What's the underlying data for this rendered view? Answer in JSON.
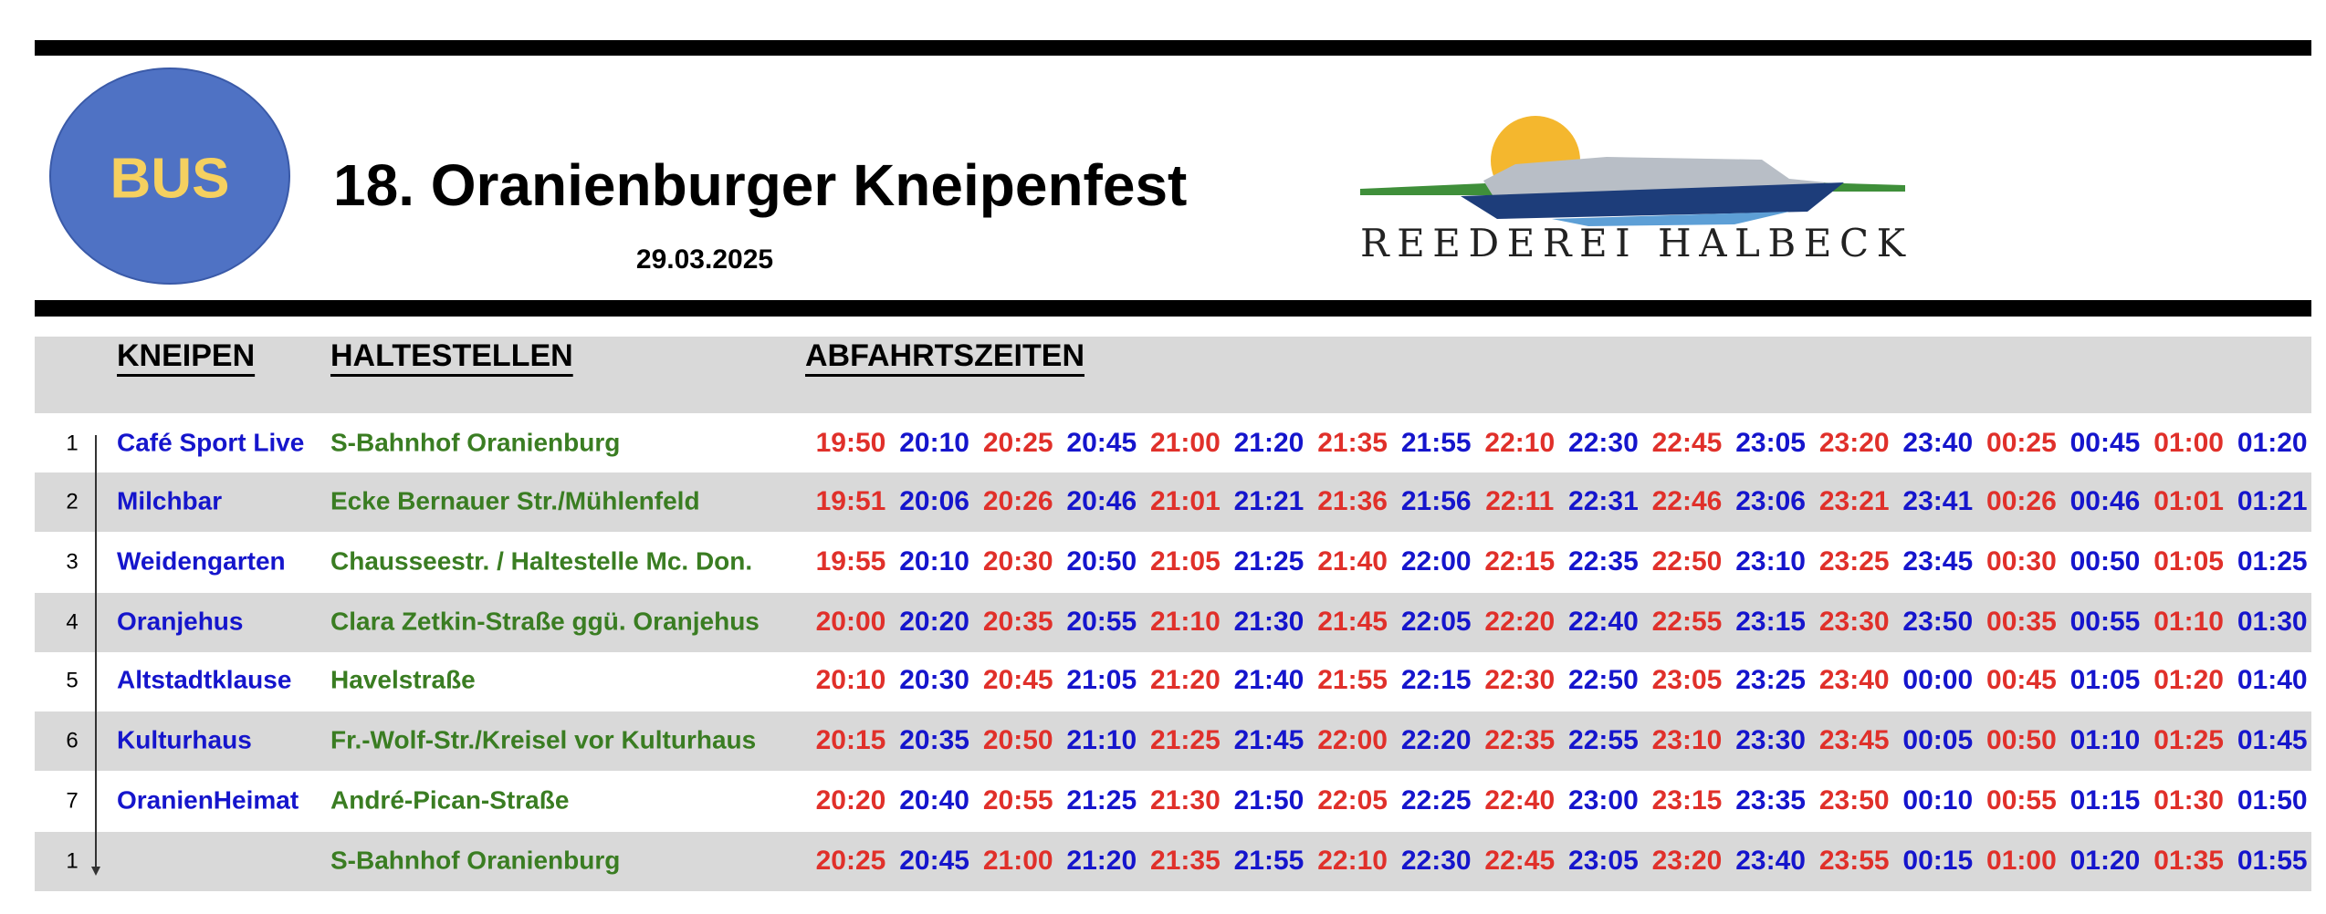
{
  "header": {
    "badge": "BUS",
    "title": "18. Oranienburger Kneipenfest",
    "date": "29.03.2025",
    "logo_text": "REEDEREI HALBECK"
  },
  "table": {
    "columns": [
      "KNEIPEN",
      "HALTESTELLEN",
      "ABFAHRTSZEITEN"
    ],
    "time_colors": [
      "#e0302a",
      "#1515cc"
    ],
    "rows": [
      {
        "num": "1",
        "kneipe": "Café Sport Live",
        "stop": "S-Bahnhof Oranienburg",
        "times": [
          "19:50",
          "20:10",
          "20:25",
          "20:45",
          "21:00",
          "21:20",
          "21:35",
          "21:55",
          "22:10",
          "22:30",
          "22:45",
          "23:05",
          "23:20",
          "23:40",
          "00:25",
          "00:45",
          "01:00",
          "01:20"
        ]
      },
      {
        "num": "2",
        "kneipe": "Milchbar",
        "stop": "Ecke Bernauer Str./Mühlenfeld",
        "times": [
          "19:51",
          "20:06",
          "20:26",
          "20:46",
          "21:01",
          "21:21",
          "21:36",
          "21:56",
          "22:11",
          "22:31",
          "22:46",
          "23:06",
          "23:21",
          "23:41",
          "00:26",
          "00:46",
          "01:01",
          "01:21"
        ]
      },
      {
        "num": "3",
        "kneipe": "Weidengarten",
        "stop": "Chausseestr. / Haltestelle Mc. Don.",
        "times": [
          "19:55",
          "20:10",
          "20:30",
          "20:50",
          "21:05",
          "21:25",
          "21:40",
          "22:00",
          "22:15",
          "22:35",
          "22:50",
          "23:10",
          "23:25",
          "23:45",
          "00:30",
          "00:50",
          "01:05",
          "01:25"
        ]
      },
      {
        "num": "4",
        "kneipe": "Oranjehus",
        "stop": "Clara Zetkin-Straße ggü. Oranjehus",
        "times": [
          "20:00",
          "20:20",
          "20:35",
          "20:55",
          "21:10",
          "21:30",
          "21:45",
          "22:05",
          "22:20",
          "22:40",
          "22:55",
          "23:15",
          "23:30",
          "23:50",
          "00:35",
          "00:55",
          "01:10",
          "01:30"
        ]
      },
      {
        "num": "5",
        "kneipe": "Altstadtklause",
        "stop": "Havelstraße",
        "times": [
          "20:10",
          "20:30",
          "20:45",
          "21:05",
          "21:20",
          "21:40",
          "21:55",
          "22:15",
          "22:30",
          "22:50",
          "23:05",
          "23:25",
          "23:40",
          "00:00",
          "00:45",
          "01:05",
          "01:20",
          "01:40"
        ]
      },
      {
        "num": "6",
        "kneipe": "Kulturhaus",
        "stop": "Fr.-Wolf-Str./Kreisel vor Kulturhaus",
        "times": [
          "20:15",
          "20:35",
          "20:50",
          "21:10",
          "21:25",
          "21:45",
          "22:00",
          "22:20",
          "22:35",
          "22:55",
          "23:10",
          "23:30",
          "23:45",
          "00:05",
          "00:50",
          "01:10",
          "01:25",
          "01:45"
        ]
      },
      {
        "num": "7",
        "kneipe": "OranienHeimat",
        "stop": "André-Pican-Straße",
        "times": [
          "20:20",
          "20:40",
          "20:55",
          "21:25",
          "21:30",
          "21:50",
          "22:05",
          "22:25",
          "22:40",
          "23:00",
          "23:15",
          "23:35",
          "23:50",
          "00:10",
          "00:55",
          "01:15",
          "01:30",
          "01:50"
        ]
      },
      {
        "num": "1",
        "stop": "S-Bahnhof Oranienburg",
        "times": [
          "20:25",
          "20:45",
          "21:00",
          "21:20",
          "21:35",
          "21:55",
          "22:10",
          "22:30",
          "22:45",
          "23:05",
          "23:20",
          "23:40",
          "23:55",
          "00:15",
          "01:00",
          "01:20",
          "01:35",
          "01:55"
        ]
      }
    ]
  }
}
